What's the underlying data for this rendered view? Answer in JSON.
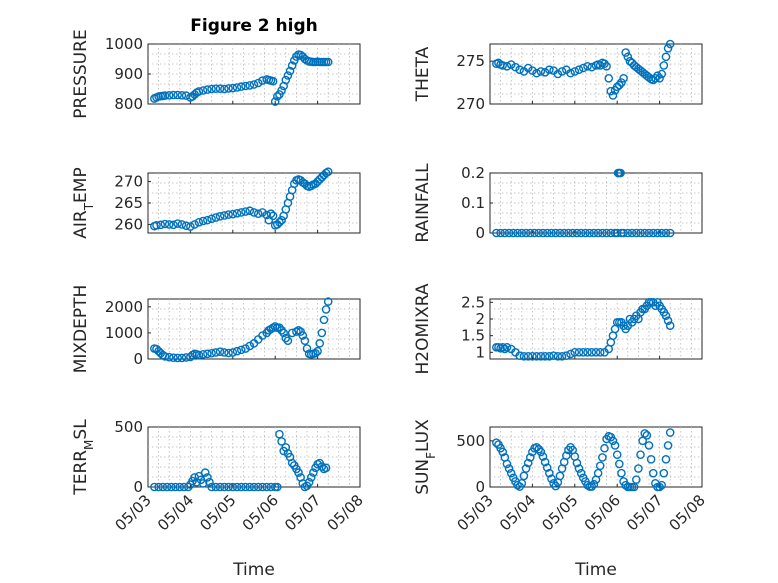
{
  "figure": {
    "title": "Figure 2 high",
    "marker_color": "#0072BD"
  },
  "chart_data": [
    {
      "type": "scatter",
      "ylabel": "PRESSURE",
      "ylim": [
        800,
        1000
      ],
      "yticks": [
        800,
        900,
        1000
      ],
      "yticklabels": [
        "800",
        "900",
        "1000"
      ],
      "xlim": [
        0,
        5
      ],
      "xticks": [
        0,
        1,
        2,
        3,
        4,
        5
      ],
      "xticklabels": [
        "05/03",
        "05/04",
        "05/05",
        "05/06",
        "05/07",
        "05/08"
      ],
      "show_xticklabels": false,
      "grid": true,
      "x": [
        0.15,
        0.2,
        0.25,
        0.3,
        0.35,
        0.4,
        0.5,
        0.6,
        0.7,
        0.8,
        0.9,
        1.0,
        1.05,
        1.1,
        1.15,
        1.2,
        1.3,
        1.4,
        1.5,
        1.6,
        1.7,
        1.8,
        1.9,
        2.0,
        2.1,
        2.2,
        2.3,
        2.4,
        2.5,
        2.6,
        2.7,
        2.8,
        2.85,
        2.9,
        2.95,
        3.0,
        3.05,
        3.1,
        3.15,
        3.2,
        3.25,
        3.3,
        3.35,
        3.4,
        3.45,
        3.5,
        3.55,
        3.6,
        3.65,
        3.7,
        3.75,
        3.8,
        3.85,
        3.9,
        3.95,
        4.0,
        4.05,
        4.1,
        4.15,
        4.2,
        4.25
      ],
      "y": [
        818,
        822,
        825,
        826,
        827,
        828,
        829,
        830,
        830,
        829,
        828,
        822,
        825,
        832,
        838,
        842,
        845,
        848,
        850,
        851,
        851,
        850,
        852,
        853,
        855,
        858,
        860,
        862,
        865,
        870,
        878,
        882,
        880,
        878,
        876,
        808,
        825,
        832,
        845,
        860,
        880,
        895,
        910,
        928,
        945,
        958,
        965,
        963,
        958,
        950,
        945,
        942,
        941,
        940,
        940,
        941,
        940,
        940,
        940,
        940,
        940
      ]
    },
    {
      "type": "scatter",
      "ylabel": "THETA",
      "ylim": [
        270,
        277
      ],
      "yticks": [
        270,
        275
      ],
      "yticklabels": [
        "270",
        "275"
      ],
      "xlim": [
        0,
        5
      ],
      "xticks": [
        0,
        1,
        2,
        3,
        4,
        5
      ],
      "xticklabels": [
        "05/03",
        "05/04",
        "05/05",
        "05/06",
        "05/07",
        "05/08"
      ],
      "show_xticklabels": false,
      "grid": true,
      "x": [
        0.15,
        0.2,
        0.25,
        0.3,
        0.4,
        0.5,
        0.6,
        0.7,
        0.8,
        0.9,
        1.0,
        1.1,
        1.2,
        1.3,
        1.4,
        1.5,
        1.6,
        1.7,
        1.8,
        1.9,
        2.0,
        2.1,
        2.2,
        2.3,
        2.4,
        2.5,
        2.55,
        2.6,
        2.65,
        2.7,
        2.75,
        2.8,
        2.85,
        2.9,
        2.95,
        3.0,
        3.05,
        3.1,
        3.15,
        3.2,
        3.25,
        3.3,
        3.35,
        3.4,
        3.45,
        3.5,
        3.55,
        3.6,
        3.65,
        3.7,
        3.75,
        3.8,
        3.85,
        3.9,
        3.95,
        4.0,
        4.05,
        4.1,
        4.15,
        4.2,
        4.25
      ],
      "y": [
        274.7,
        274.8,
        274.6,
        274.5,
        274.4,
        274.6,
        274.3,
        274.0,
        273.8,
        274.2,
        273.9,
        273.6,
        273.8,
        273.7,
        274.0,
        273.9,
        273.5,
        273.8,
        274.0,
        273.6,
        273.8,
        274.0,
        274.2,
        274.4,
        274.3,
        274.5,
        274.6,
        274.5,
        274.8,
        274.7,
        274.4,
        273.0,
        271.5,
        271.0,
        271.6,
        272.0,
        272.2,
        272.5,
        273.0,
        276.0,
        275.5,
        275.0,
        274.8,
        274.5,
        274.3,
        274.1,
        273.9,
        273.7,
        273.5,
        273.3,
        273.1,
        272.9,
        272.8,
        273.0,
        273.3,
        273.0,
        273.5,
        274.5,
        275.5,
        276.5,
        277.0
      ]
    },
    {
      "type": "scatter",
      "ylabel": "AIR_TEMP",
      "ylim": [
        258,
        272
      ],
      "yticks": [
        260,
        265,
        270
      ],
      "yticklabels": [
        "260",
        "265",
        "270"
      ],
      "xlim": [
        0,
        5
      ],
      "xticks": [
        0,
        1,
        2,
        3,
        4,
        5
      ],
      "xticklabels": [
        "05/03",
        "05/04",
        "05/05",
        "05/06",
        "05/07",
        "05/08"
      ],
      "show_xticklabels": false,
      "grid": true,
      "x": [
        0.15,
        0.2,
        0.3,
        0.4,
        0.5,
        0.6,
        0.7,
        0.8,
        0.9,
        1.0,
        1.1,
        1.2,
        1.3,
        1.4,
        1.5,
        1.6,
        1.7,
        1.8,
        1.9,
        2.0,
        2.1,
        2.2,
        2.3,
        2.4,
        2.5,
        2.6,
        2.7,
        2.8,
        2.85,
        2.9,
        2.95,
        3.0,
        3.05,
        3.1,
        3.15,
        3.2,
        3.25,
        3.3,
        3.35,
        3.4,
        3.45,
        3.5,
        3.55,
        3.6,
        3.65,
        3.7,
        3.75,
        3.8,
        3.85,
        3.9,
        3.95,
        4.0,
        4.05,
        4.1,
        4.15,
        4.2,
        4.25
      ],
      "y": [
        259.6,
        259.8,
        259.9,
        260.1,
        260.0,
        259.9,
        260.2,
        260.0,
        259.7,
        259.5,
        260.0,
        260.5,
        260.8,
        261.0,
        261.3,
        261.6,
        261.9,
        262.1,
        262.3,
        262.4,
        262.6,
        262.8,
        263.0,
        263.2,
        262.8,
        262.5,
        262.8,
        262.2,
        261.0,
        262.5,
        262.0,
        259.8,
        260.0,
        260.5,
        261.0,
        262.0,
        263.5,
        265.0,
        266.5,
        268.0,
        269.5,
        270.3,
        270.5,
        270.3,
        269.8,
        269.5,
        269.0,
        268.8,
        269.0,
        269.3,
        269.5,
        270.0,
        270.5,
        271.0,
        271.5,
        272.0,
        272.3
      ]
    },
    {
      "type": "scatter",
      "ylabel": "RAINFALL",
      "ylim": [
        0,
        0.2
      ],
      "yticks": [
        0,
        0.1,
        0.2
      ],
      "yticklabels": [
        "0",
        "0.1",
        "0.2"
      ],
      "xlim": [
        0,
        5
      ],
      "xticks": [
        0,
        1,
        2,
        3,
        4,
        5
      ],
      "xticklabels": [
        "05/03",
        "05/04",
        "05/05",
        "05/06",
        "05/07",
        "05/08"
      ],
      "show_xticklabels": false,
      "grid": true,
      "x": [
        0.15,
        0.25,
        0.35,
        0.45,
        0.55,
        0.65,
        0.75,
        0.85,
        0.95,
        1.05,
        1.15,
        1.25,
        1.35,
        1.45,
        1.55,
        1.65,
        1.75,
        1.85,
        1.95,
        2.05,
        2.15,
        2.25,
        2.35,
        2.45,
        2.55,
        2.65,
        2.75,
        2.85,
        2.95,
        3.0,
        3.02,
        3.04,
        3.06,
        3.08,
        3.1,
        3.15,
        3.25,
        3.35,
        3.45,
        3.55,
        3.65,
        3.75,
        3.85,
        3.95,
        4.05,
        4.15,
        4.25
      ],
      "y": [
        0,
        0,
        0,
        0,
        0,
        0,
        0,
        0,
        0,
        0,
        0,
        0,
        0,
        0,
        0,
        0,
        0,
        0,
        0,
        0,
        0,
        0,
        0,
        0,
        0,
        0,
        0,
        0,
        0,
        0,
        0.2,
        0.2,
        0.2,
        0.2,
        0,
        0,
        0,
        0,
        0,
        0,
        0,
        0,
        0,
        0,
        0,
        0,
        0
      ]
    },
    {
      "type": "scatter",
      "ylabel": "MIXDEPTH",
      "ylim": [
        0,
        2300
      ],
      "yticks": [
        0,
        1000,
        2000
      ],
      "yticklabels": [
        "0",
        "1000",
        "2000"
      ],
      "xlim": [
        0,
        5
      ],
      "xticks": [
        0,
        1,
        2,
        3,
        4,
        5
      ],
      "xticklabels": [
        "05/03",
        "05/04",
        "05/05",
        "05/06",
        "05/07",
        "05/08"
      ],
      "show_xticklabels": false,
      "grid": true,
      "x": [
        0.15,
        0.2,
        0.25,
        0.3,
        0.35,
        0.4,
        0.5,
        0.6,
        0.7,
        0.8,
        0.9,
        1.0,
        1.05,
        1.1,
        1.15,
        1.2,
        1.3,
        1.4,
        1.5,
        1.6,
        1.7,
        1.8,
        1.9,
        2.0,
        2.1,
        2.2,
        2.3,
        2.4,
        2.5,
        2.6,
        2.7,
        2.8,
        2.85,
        2.9,
        2.95,
        3.0,
        3.05,
        3.1,
        3.15,
        3.2,
        3.25,
        3.3,
        3.4,
        3.5,
        3.55,
        3.6,
        3.65,
        3.7,
        3.75,
        3.8,
        3.85,
        3.9,
        3.95,
        4.0,
        4.05,
        4.1,
        4.15,
        4.2,
        4.25
      ],
      "y": [
        400,
        380,
        300,
        220,
        150,
        100,
        70,
        50,
        40,
        40,
        60,
        80,
        150,
        200,
        180,
        150,
        180,
        200,
        220,
        250,
        280,
        250,
        230,
        250,
        300,
        350,
        400,
        500,
        600,
        750,
        900,
        1000,
        1100,
        1150,
        1200,
        1250,
        1200,
        1200,
        1100,
        1000,
        800,
        700,
        1000,
        1050,
        1100,
        1050,
        900,
        700,
        400,
        200,
        180,
        200,
        220,
        300,
        600,
        1000,
        1500,
        1900,
        2200
      ]
    },
    {
      "type": "scatter",
      "ylabel": "H2OMIXRA",
      "ylim": [
        0.8,
        2.6
      ],
      "yticks": [
        1,
        1.5,
        2,
        2.5
      ],
      "yticklabels": [
        "1",
        "1.5",
        "2",
        "2.5"
      ],
      "xlim": [
        0,
        5
      ],
      "xticks": [
        0,
        1,
        2,
        3,
        4,
        5
      ],
      "xticklabels": [
        "05/03",
        "05/04",
        "05/05",
        "05/06",
        "05/07",
        "05/08"
      ],
      "show_xticklabels": false,
      "grid": true,
      "x": [
        0.15,
        0.2,
        0.25,
        0.3,
        0.35,
        0.4,
        0.5,
        0.6,
        0.7,
        0.8,
        0.9,
        1.0,
        1.1,
        1.2,
        1.3,
        1.4,
        1.5,
        1.6,
        1.7,
        1.8,
        1.9,
        2.0,
        2.1,
        2.2,
        2.3,
        2.4,
        2.5,
        2.6,
        2.7,
        2.8,
        2.85,
        2.9,
        2.95,
        3.0,
        3.05,
        3.1,
        3.15,
        3.2,
        3.25,
        3.3,
        3.35,
        3.4,
        3.45,
        3.5,
        3.55,
        3.6,
        3.65,
        3.7,
        3.75,
        3.8,
        3.85,
        3.9,
        3.95,
        4.0,
        4.05,
        4.1,
        4.15,
        4.2,
        4.25
      ],
      "y": [
        1.15,
        1.15,
        1.12,
        1.15,
        1.1,
        1.15,
        1.1,
        1.0,
        0.9,
        0.88,
        0.88,
        0.88,
        0.88,
        0.88,
        0.88,
        0.88,
        0.9,
        0.88,
        0.88,
        0.9,
        0.95,
        1.0,
        1.0,
        1.0,
        1.0,
        1.0,
        1.0,
        1.0,
        1.0,
        1.1,
        1.3,
        1.5,
        1.7,
        1.9,
        1.9,
        1.9,
        1.8,
        1.7,
        1.8,
        2.0,
        1.9,
        2.0,
        2.1,
        2.0,
        2.2,
        2.3,
        2.3,
        2.4,
        2.5,
        2.5,
        2.5,
        2.4,
        2.5,
        2.4,
        2.3,
        2.2,
        2.1,
        1.95,
        1.8
      ]
    },
    {
      "type": "scatter",
      "ylabel": "TERR_MSL",
      "ylim": [
        0,
        500
      ],
      "yticks": [
        0,
        500
      ],
      "yticklabels": [
        "0",
        "500"
      ],
      "xlim": [
        0,
        5
      ],
      "xticks": [
        0,
        1,
        2,
        3,
        4,
        5
      ],
      "xticklabels": [
        "05/03",
        "05/04",
        "05/05",
        "05/06",
        "05/07",
        "05/08"
      ],
      "show_xticklabels": true,
      "grid": true,
      "x": [
        0.15,
        0.25,
        0.35,
        0.45,
        0.55,
        0.65,
        0.75,
        0.85,
        0.95,
        1.0,
        1.05,
        1.1,
        1.15,
        1.2,
        1.25,
        1.3,
        1.35,
        1.4,
        1.45,
        1.5,
        1.6,
        1.7,
        1.8,
        1.9,
        2.0,
        2.1,
        2.2,
        2.3,
        2.4,
        2.5,
        2.6,
        2.7,
        2.8,
        2.9,
        3.0,
        3.05,
        3.1,
        3.15,
        3.2,
        3.25,
        3.3,
        3.35,
        3.4,
        3.45,
        3.5,
        3.55,
        3.6,
        3.65,
        3.7,
        3.75,
        3.8,
        3.85,
        3.9,
        3.95,
        4.0,
        4.05,
        4.1,
        4.15,
        4.2
      ],
      "y": [
        0,
        0,
        0,
        0,
        0,
        0,
        0,
        0,
        0,
        20,
        50,
        80,
        40,
        90,
        60,
        30,
        120,
        80,
        40,
        0,
        0,
        0,
        0,
        0,
        0,
        0,
        0,
        0,
        0,
        0,
        0,
        0,
        0,
        0,
        0,
        0,
        440,
        380,
        300,
        330,
        280,
        250,
        200,
        180,
        150,
        120,
        80,
        30,
        0,
        10,
        40,
        80,
        120,
        160,
        190,
        200,
        170,
        150,
        160
      ]
    },
    {
      "type": "scatter",
      "ylabel": "SUN_FLUX",
      "ylim": [
        0,
        650
      ],
      "yticks": [
        0,
        500
      ],
      "yticklabels": [
        "0",
        "500"
      ],
      "xlim": [
        0,
        5
      ],
      "xticks": [
        0,
        1,
        2,
        3,
        4,
        5
      ],
      "xticklabels": [
        "05/03",
        "05/04",
        "05/05",
        "05/06",
        "05/07",
        "05/08"
      ],
      "show_xticklabels": true,
      "grid": true,
      "x": [
        0.15,
        0.2,
        0.25,
        0.3,
        0.35,
        0.4,
        0.45,
        0.5,
        0.55,
        0.6,
        0.65,
        0.7,
        0.75,
        0.8,
        0.85,
        0.9,
        0.95,
        1.0,
        1.05,
        1.1,
        1.15,
        1.2,
        1.25,
        1.3,
        1.35,
        1.4,
        1.45,
        1.5,
        1.55,
        1.6,
        1.65,
        1.7,
        1.75,
        1.8,
        1.85,
        1.9,
        1.95,
        2.0,
        2.05,
        2.1,
        2.15,
        2.2,
        2.25,
        2.3,
        2.35,
        2.4,
        2.45,
        2.5,
        2.55,
        2.6,
        2.65,
        2.7,
        2.75,
        2.8,
        2.85,
        2.9,
        2.95,
        3.0,
        3.05,
        3.1,
        3.15,
        3.2,
        3.25,
        3.3,
        3.35,
        3.4,
        3.45,
        3.5,
        3.55,
        3.6,
        3.65,
        3.7,
        3.75,
        3.8,
        3.85,
        3.9,
        3.95,
        4.0,
        4.05,
        4.1,
        4.15,
        4.2,
        4.25
      ],
      "y": [
        480,
        460,
        420,
        380,
        320,
        250,
        200,
        150,
        100,
        60,
        20,
        5,
        40,
        120,
        200,
        260,
        320,
        380,
        420,
        430,
        410,
        380,
        330,
        270,
        210,
        150,
        90,
        40,
        10,
        50,
        120,
        200,
        270,
        340,
        400,
        430,
        400,
        330,
        260,
        200,
        150,
        100,
        60,
        20,
        5,
        5,
        30,
        80,
        150,
        230,
        320,
        420,
        520,
        550,
        540,
        500,
        450,
        350,
        250,
        150,
        60,
        20,
        0,
        0,
        0,
        0,
        80,
        200,
        350,
        500,
        580,
        560,
        450,
        300,
        150,
        40,
        0,
        0,
        20,
        150,
        300,
        450,
        590
      ]
    }
  ],
  "xlabel": "Time"
}
